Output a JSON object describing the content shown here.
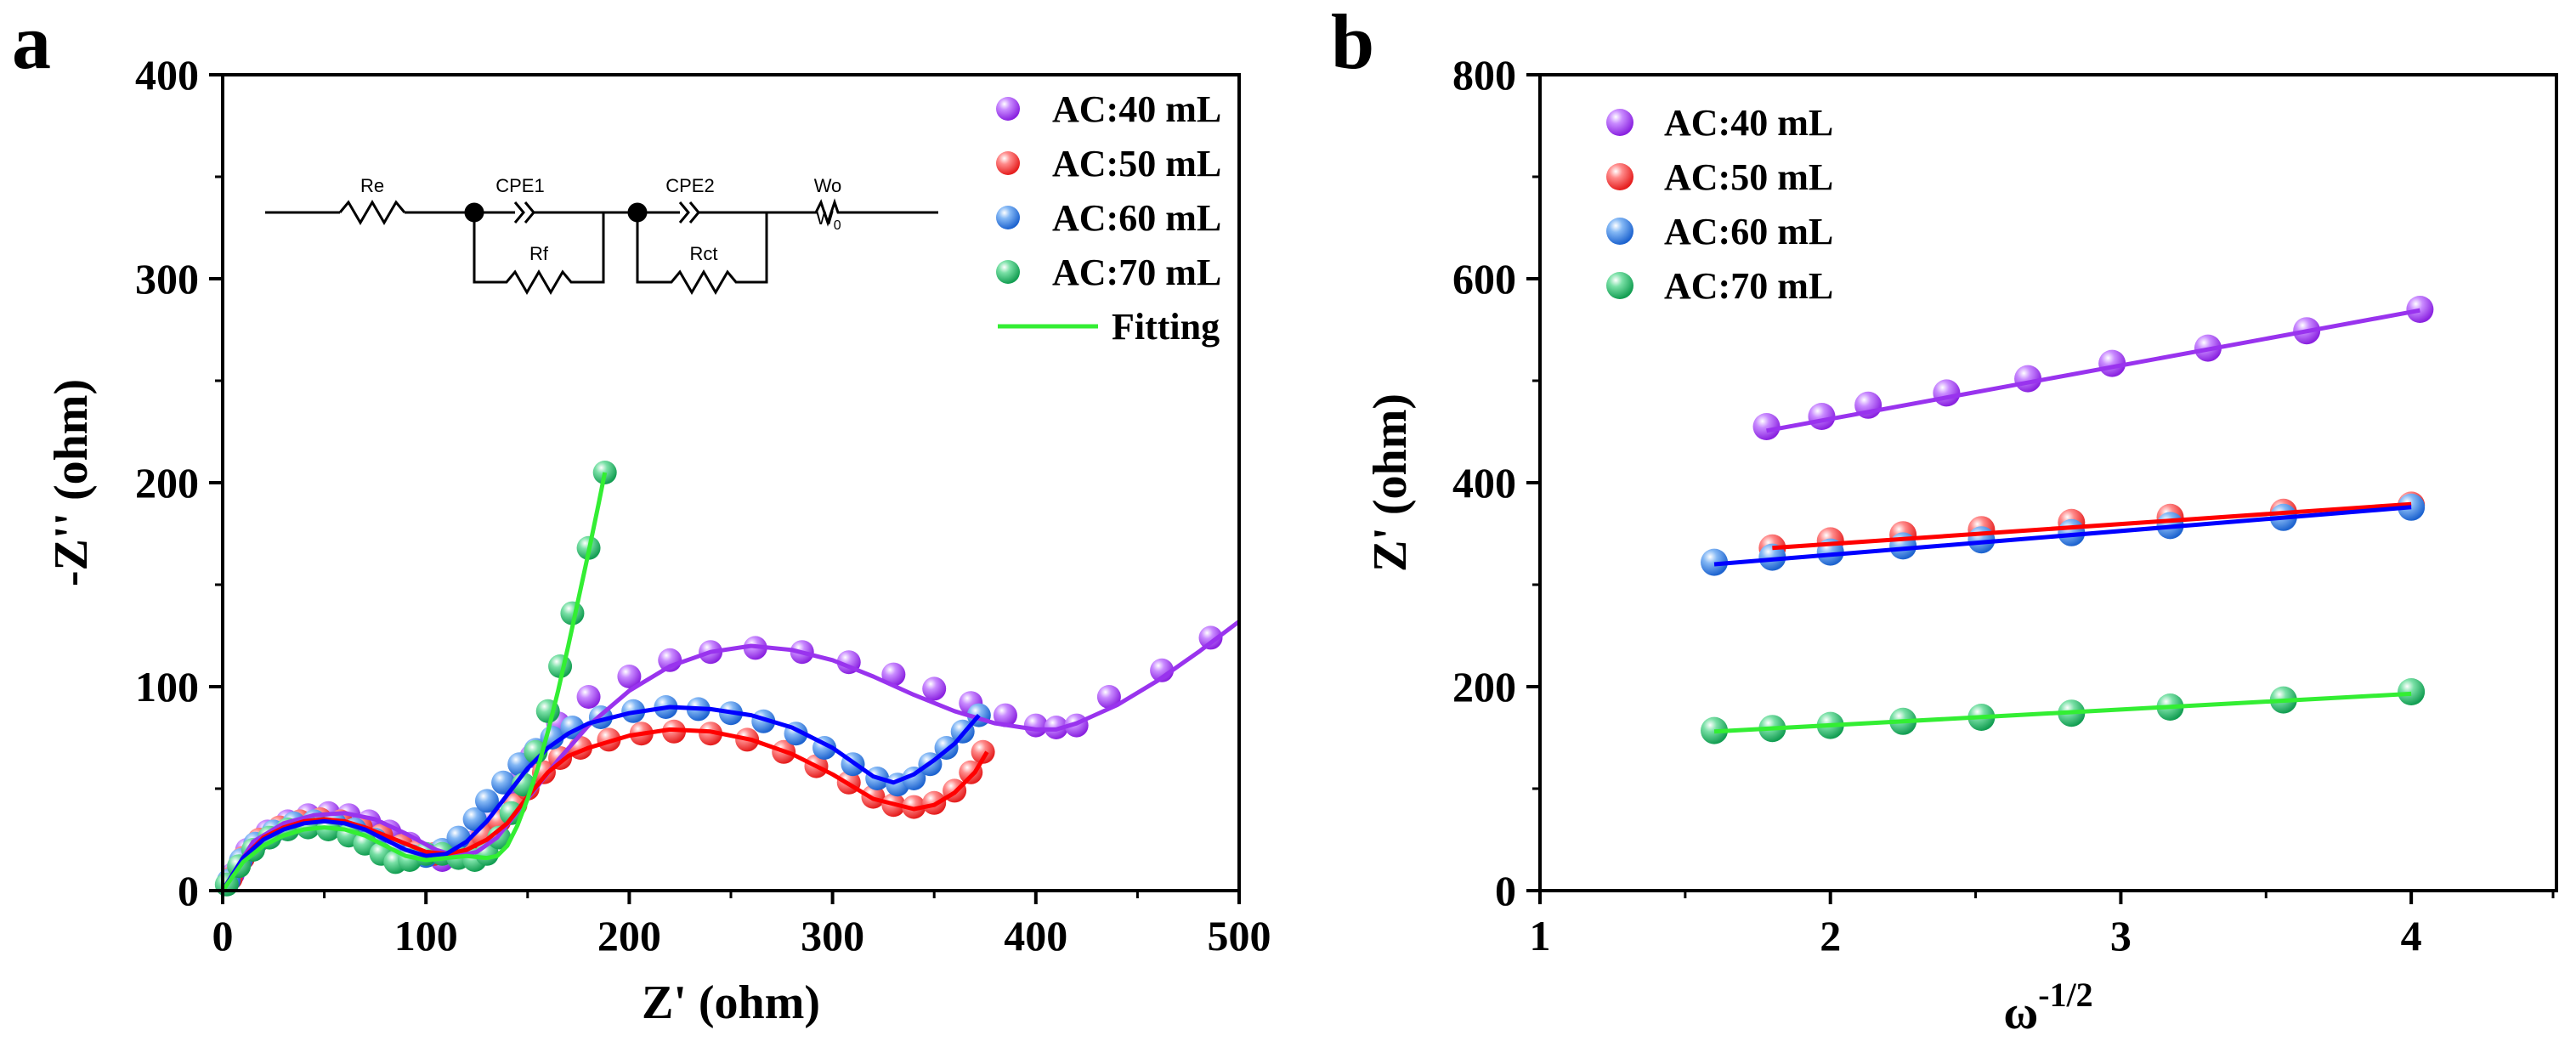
{
  "colors": {
    "AC40": "#9933ee",
    "AC50": "#ff3b3b",
    "AC60": "#2f7de0",
    "AC70": "#22bb66",
    "fit_green": "#33ee33",
    "fit_purple": "#9933ee",
    "fit_red": "#ff0000",
    "fit_blue": "#0000ff"
  },
  "chart_data": [
    {
      "panel_label": "a",
      "type": "scatter",
      "title": "",
      "xlabel": "Z' (ohm)",
      "ylabel": "-Z'' (ohm)",
      "xlim": [
        0,
        500
      ],
      "ylim": [
        0,
        400
      ],
      "xticks": [
        "0",
        "100",
        "200",
        "300",
        "400",
        "500"
      ],
      "yticks": [
        "0",
        "100",
        "200",
        "300",
        "400"
      ],
      "legend_position": "top-right",
      "legend": [
        "AC:40 mL",
        "AC:50 mL",
        "AC:60 mL",
        "AC:70 mL",
        "Fitting"
      ],
      "inset_circuit": {
        "labels": [
          "Re",
          "CPE1",
          "Rf",
          "CPE2",
          "Rct",
          "Wo"
        ],
        "wo_sub": "0"
      },
      "series": [
        {
          "name": "AC:40 mL",
          "color_key": "AC40",
          "x": [
            5,
            12,
            22,
            32,
            42,
            52,
            62,
            72,
            82,
            92,
            100,
            108,
            116,
            124,
            132,
            142,
            152,
            165,
            180,
            200,
            220,
            240,
            262,
            285,
            308,
            330,
            350,
            368,
            385,
            400,
            410,
            420,
            436,
            462,
            486
          ],
          "y": [
            8,
            20,
            29,
            34,
            37,
            38,
            37,
            34,
            29,
            23,
            18,
            15,
            17,
            24,
            36,
            52,
            66,
            82,
            95,
            105,
            113,
            117,
            119,
            117,
            112,
            106,
            99,
            92,
            86,
            81,
            80,
            81,
            95,
            108,
            124
          ]
        },
        {
          "name": "AC:50 mL",
          "color_key": "AC50",
          "x": [
            4,
            10,
            18,
            28,
            38,
            48,
            58,
            68,
            78,
            88,
            96,
            104,
            112,
            120,
            128,
            136,
            144,
            150,
            158,
            166,
            176,
            190,
            206,
            222,
            240,
            258,
            276,
            292,
            308,
            320,
            330,
            340,
            350,
            360,
            368,
            374
          ],
          "y": [
            6,
            16,
            25,
            31,
            34,
            35,
            34,
            31,
            27,
            22,
            19,
            18,
            19,
            22,
            27,
            34,
            42,
            50,
            58,
            65,
            70,
            74,
            77,
            78,
            77,
            74,
            68,
            61,
            53,
            46,
            42,
            41,
            43,
            49,
            58,
            68
          ]
        },
        {
          "name": "AC:60 mL",
          "color_key": "AC60",
          "x": [
            3,
            9,
            16,
            25,
            35,
            45,
            55,
            65,
            75,
            85,
            93,
            100,
            108,
            116,
            124,
            130,
            138,
            146,
            154,
            162,
            172,
            186,
            202,
            218,
            234,
            250,
            266,
            282,
            296,
            310,
            322,
            332,
            340,
            348,
            356,
            364,
            372
          ],
          "y": [
            5,
            15,
            23,
            29,
            33,
            34,
            33,
            30,
            25,
            20,
            17,
            17,
            20,
            26,
            35,
            44,
            53,
            62,
            69,
            75,
            80,
            85,
            88,
            90,
            89,
            87,
            83,
            77,
            70,
            62,
            55,
            52,
            55,
            62,
            70,
            78,
            86
          ]
        },
        {
          "name": "AC:70 mL",
          "color_key": "AC70",
          "x": [
            2,
            8,
            15,
            23,
            32,
            42,
            52,
            62,
            70,
            78,
            85,
            92,
            100,
            108,
            116,
            124,
            130,
            136,
            142,
            148,
            154,
            160,
            166,
            172,
            180,
            188
          ],
          "y": [
            3,
            12,
            20,
            26,
            30,
            31,
            30,
            27,
            23,
            18,
            14,
            15,
            18,
            18,
            16,
            15,
            18,
            26,
            38,
            52,
            68,
            88,
            110,
            136,
            168,
            205
          ]
        }
      ],
      "fits": [
        {
          "name": "AC:40 mL",
          "color_key": "fit_purple",
          "x": [
            0,
            15,
            30,
            45,
            60,
            75,
            90,
            105,
            115,
            125,
            135,
            150,
            165,
            180,
            200,
            220,
            240,
            260,
            280,
            300,
            320,
            340,
            360,
            380,
            400,
            410,
            420,
            440,
            460,
            480,
            500
          ],
          "y": [
            0,
            24,
            33,
            37,
            38,
            35,
            28,
            20,
            17,
            19,
            26,
            45,
            64,
            81,
            98,
            110,
            117,
            120,
            118,
            113,
            105,
            96,
            88,
            82,
            79,
            79,
            82,
            91,
            103,
            117,
            132
          ]
        },
        {
          "name": "AC:50 mL",
          "color_key": "fit_red",
          "x": [
            0,
            10,
            20,
            30,
            40,
            50,
            60,
            70,
            80,
            90,
            100,
            110,
            120,
            130,
            140,
            150,
            160,
            170,
            180,
            200,
            220,
            240,
            260,
            280,
            300,
            320,
            340,
            350,
            360,
            370,
            376
          ],
          "y": [
            0,
            16,
            26,
            31,
            34,
            35,
            34,
            31,
            27,
            23,
            19,
            18,
            20,
            25,
            33,
            46,
            58,
            66,
            70,
            76,
            79,
            78,
            74,
            67,
            57,
            45,
            40,
            42,
            48,
            58,
            68
          ]
        },
        {
          "name": "AC:60 mL",
          "color_key": "fit_blue",
          "x": [
            0,
            10,
            20,
            30,
            40,
            50,
            60,
            70,
            80,
            90,
            100,
            110,
            120,
            130,
            140,
            150,
            160,
            170,
            180,
            200,
            220,
            240,
            260,
            280,
            300,
            320,
            330,
            340,
            350,
            360,
            372
          ],
          "y": [
            0,
            16,
            25,
            30,
            33,
            34,
            33,
            30,
            25,
            20,
            17,
            18,
            24,
            34,
            47,
            60,
            70,
            77,
            82,
            87,
            90,
            89,
            86,
            80,
            70,
            56,
            53,
            57,
            64,
            72,
            86
          ]
        },
        {
          "name": "AC:70 mL",
          "color_key": "fit_green",
          "x": [
            0,
            10,
            20,
            30,
            40,
            50,
            60,
            70,
            80,
            90,
            100,
            110,
            120,
            130,
            135,
            140,
            145,
            150,
            155,
            160,
            165,
            170,
            175,
            180,
            185,
            188
          ],
          "y": [
            0,
            14,
            22,
            27,
            30,
            31,
            30,
            27,
            22,
            17,
            15,
            16,
            17,
            16,
            17,
            22,
            32,
            45,
            60,
            78,
            98,
            120,
            143,
            166,
            190,
            205
          ]
        }
      ]
    },
    {
      "panel_label": "b",
      "type": "scatter",
      "title": "",
      "xlabel": "ω",
      "xlabel_sup": "-1/2",
      "ylabel": "Z' (ohm)",
      "xlim": [
        1,
        4.5
      ],
      "ylim": [
        0,
        800
      ],
      "xticks": [
        "1",
        "2",
        "3",
        "4"
      ],
      "yticks": [
        "0",
        "200",
        "400",
        "600",
        "800"
      ],
      "legend_position": "top-left",
      "legend": [
        "AC:40 mL",
        "AC:50 mL",
        "AC:60 mL",
        "AC:70 mL"
      ],
      "series": [
        {
          "name": "AC:40 mL",
          "color_key": "AC40",
          "x": [
            1.78,
            1.97,
            2.13,
            2.4,
            2.68,
            2.97,
            3.3,
            3.64,
            4.03
          ],
          "y": [
            455,
            465,
            476,
            488,
            502,
            517,
            532,
            549,
            570
          ]
        },
        {
          "name": "AC:50 mL",
          "color_key": "AC50",
          "x": [
            1.8,
            2.0,
            2.25,
            2.52,
            2.83,
            3.17,
            3.56,
            4.0
          ],
          "y": [
            336,
            343,
            349,
            354,
            361,
            366,
            371,
            378
          ]
        },
        {
          "name": "AC:60 mL",
          "color_key": "AC60",
          "x": [
            1.6,
            1.8,
            2.0,
            2.25,
            2.52,
            2.83,
            3.17,
            3.56,
            4.0
          ],
          "y": [
            322,
            327,
            332,
            338,
            344,
            351,
            358,
            366,
            376
          ]
        },
        {
          "name": "AC:70 mL",
          "color_key": "AC70",
          "x": [
            1.6,
            1.8,
            2.0,
            2.25,
            2.52,
            2.83,
            3.17,
            3.56,
            4.0
          ],
          "y": [
            157,
            159,
            162,
            166,
            170,
            174,
            180,
            187,
            195
          ]
        }
      ],
      "fits": [
        {
          "name": "AC:40 mL",
          "color_key": "fit_purple",
          "x": [
            1.78,
            4.03
          ],
          "y": [
            451,
            569
          ]
        },
        {
          "name": "AC:50 mL",
          "color_key": "fit_red",
          "x": [
            1.8,
            4.0
          ],
          "y": [
            336,
            379
          ]
        },
        {
          "name": "AC:60 mL",
          "color_key": "fit_blue",
          "x": [
            1.6,
            4.0
          ],
          "y": [
            320,
            376
          ]
        },
        {
          "name": "AC:70 mL",
          "color_key": "fit_green",
          "x": [
            1.6,
            4.0
          ],
          "y": [
            156,
            193
          ]
        }
      ]
    }
  ]
}
